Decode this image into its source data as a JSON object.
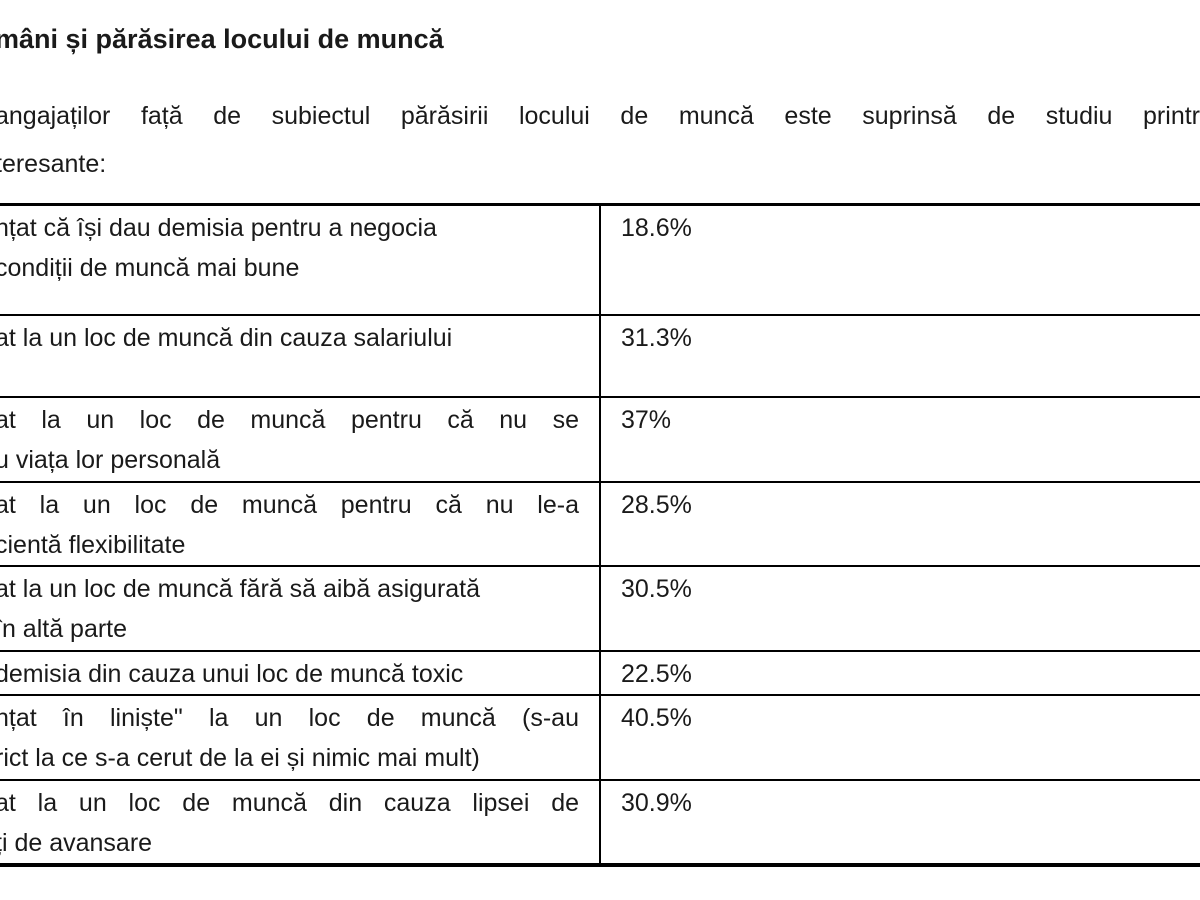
{
  "document": {
    "title": "mâni și părăsirea locului de muncă",
    "intro": {
      "line1": "angajaților față de subiectul părăsirii locului de muncă este suprinsă de studiu printr",
      "line2": "teresante:"
    }
  },
  "table": {
    "rows": [
      {
        "label_lines": [
          {
            "text": "nțat că își dau demisia pentru a negocia",
            "justify": false
          },
          {
            "text": "condiții de muncă mai bune",
            "justify": false
          }
        ],
        "value": "18.6%"
      },
      {
        "label_lines": [
          {
            "text": "at la un loc de muncă din cauza salariului",
            "justify": false
          }
        ],
        "value": "31.3%"
      },
      {
        "label_lines": [
          {
            "text": "at la un loc de muncă pentru că nu se",
            "justify": true
          },
          {
            "text": "u viața lor personală",
            "justify": false
          }
        ],
        "value": "37%"
      },
      {
        "label_lines": [
          {
            "text": "at la un loc de muncă pentru că nu le-a",
            "justify": true
          },
          {
            "text": "cientă flexibilitate",
            "justify": false
          }
        ],
        "value": "28.5%"
      },
      {
        "label_lines": [
          {
            "text": "at la un loc de muncă fără să aibă asigurată",
            "justify": false
          },
          {
            "text": "în altă parte",
            "justify": false
          }
        ],
        "value": "30.5%"
      },
      {
        "label_lines": [
          {
            "text": "demisia din cauza unui loc de muncă toxic",
            "justify": false
          }
        ],
        "value": "22.5%"
      },
      {
        "label_lines": [
          {
            "text": "nțat în liniște\" la un loc de muncă (s-au",
            "justify": true
          },
          {
            "text": "rict la ce s-a cerut de la ei și nimic mai mult)",
            "justify": false
          }
        ],
        "value": "40.5%"
      },
      {
        "label_lines": [
          {
            "text": "at la un loc de muncă din cauza lipsei de",
            "justify": true
          },
          {
            "text": "ți de avansare",
            "justify": false
          }
        ],
        "value": "30.9%"
      }
    ]
  },
  "colors": {
    "text": "#1a1a1a",
    "border": "#000000",
    "background": "#ffffff"
  }
}
